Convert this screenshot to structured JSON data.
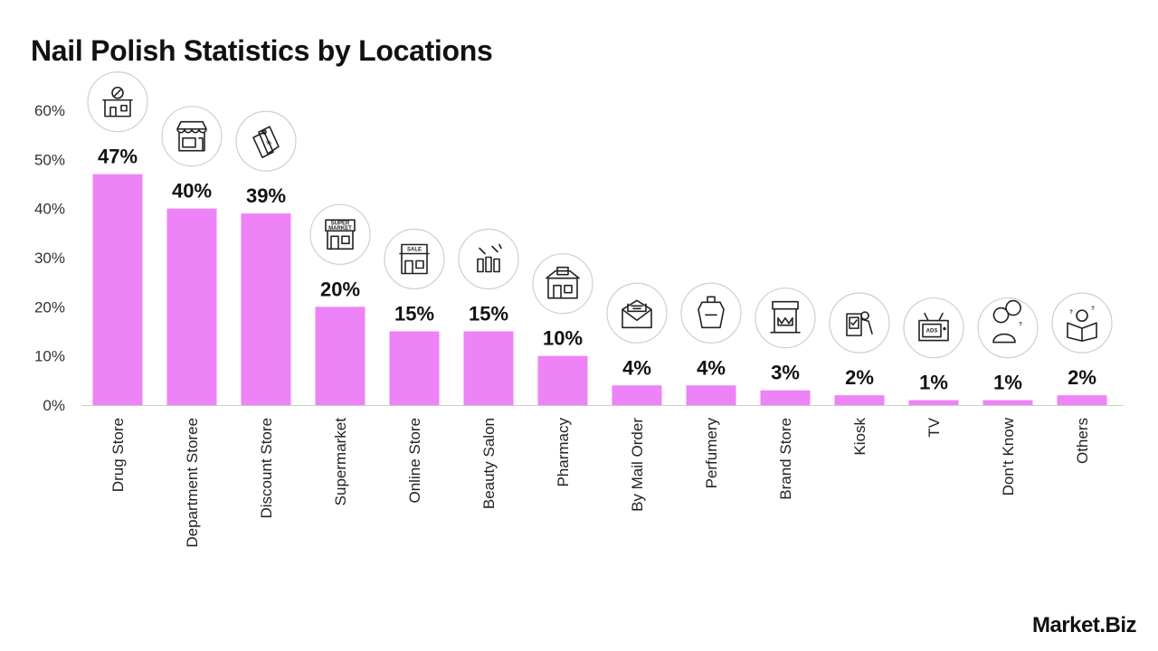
{
  "chart_data": {
    "type": "bar",
    "title": "Nail Polish Statistics by Locations",
    "xlabel": "",
    "ylabel": "",
    "ylim": [
      0,
      60
    ],
    "yticks": [
      "0%",
      "10%",
      "20%",
      "30%",
      "40%",
      "50%",
      "60%"
    ],
    "grid": false,
    "categories": [
      "Drug Store",
      "Department Storee",
      "Discount Store",
      "Supermarket",
      "Online Store",
      "Beauty Salon",
      "Pharmacy",
      "By Mail Order",
      "Perfumery",
      "Brand Store",
      "Kiosk",
      "TV",
      "Don't Know",
      "Others"
    ],
    "values": [
      47,
      40,
      39,
      20,
      15,
      15,
      10,
      4,
      4,
      3,
      2,
      1,
      1,
      2
    ],
    "value_labels": [
      "47%",
      "40%",
      "39%",
      "20%",
      "15%",
      "15%",
      "10%",
      "4%",
      "4%",
      "3%",
      "2%",
      "1%",
      "1%",
      "2%"
    ],
    "icons": [
      "drug-store-icon",
      "department-store-icon",
      "discount-tag-icon",
      "supermarket-icon",
      "online-store-icon",
      "beauty-salon-icon",
      "pharmacy-icon",
      "mail-order-icon",
      "perfume-icon",
      "brand-store-icon",
      "kiosk-icon",
      "tv-icon",
      "dont-know-icon",
      "others-icon"
    ],
    "icon_texts": {
      "supermarket": "SUPER MARKET",
      "online": "SALE",
      "tv": "ADS"
    }
  },
  "colors": {
    "bar": "#ee82f7",
    "axis": "#cccccc",
    "text": "#111111"
  },
  "brand": {
    "name": "Market.Biz"
  }
}
